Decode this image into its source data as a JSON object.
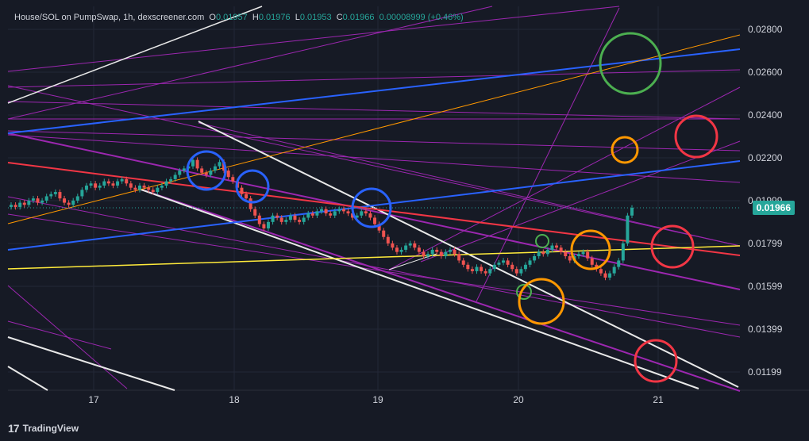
{
  "legend": {
    "title": "House/SOL on PumpSwap, 1h, dexscreener.com",
    "o_label": "O",
    "o_value": "0.01957",
    "h_label": "H",
    "h_value": "0.01976",
    "l_label": "L",
    "l_value": "0.01953",
    "c_label": "C",
    "c_value": "0.01966",
    "change": "0.00008999 (+0.46%)"
  },
  "footer": {
    "brand": "TradingView",
    "logo_glyph": "17"
  },
  "colors": {
    "background": "#161a25",
    "grid": "#232836",
    "up": "#26a69a",
    "down": "#ef5350",
    "white_line": "#e8e8e8",
    "purple_line": "#9c27b0",
    "blue_line": "#2962ff",
    "red_line": "#f23645",
    "yellow_line": "#ffeb3b",
    "orange_line": "#ff9800",
    "green_circle": "#4caf50"
  },
  "chart_data": {
    "type": "candlestick",
    "title": "House/SOL on PumpSwap, 1h, dexscreener.com",
    "y_axis": {
      "ticks": [
        "0.02800",
        "0.02600",
        "0.02400",
        "0.02200",
        "0.01999",
        "0.01799",
        "0.01599",
        "0.01399",
        "0.01199"
      ],
      "range": [
        0.0106,
        0.029
      ]
    },
    "x_axis": {
      "ticks": [
        "17",
        "18",
        "19",
        "20",
        "21"
      ]
    },
    "last_price": "0.01966",
    "ohlc_last": {
      "open": 0.01957,
      "high": 0.01976,
      "low": 0.01953,
      "close": 0.01966
    },
    "closes": [
      0.0198,
      0.0197,
      0.0199,
      0.0198,
      0.02,
      0.0201,
      0.0199,
      0.02,
      0.0202,
      0.0203,
      0.0204,
      0.0201,
      0.0199,
      0.0198,
      0.02,
      0.0202,
      0.0205,
      0.0207,
      0.0208,
      0.0206,
      0.0207,
      0.0209,
      0.0208,
      0.0207,
      0.0209,
      0.021,
      0.0208,
      0.0206,
      0.0205,
      0.0207,
      0.0206,
      0.0205,
      0.0204,
      0.0206,
      0.0207,
      0.0209,
      0.021,
      0.0212,
      0.0214,
      0.0215,
      0.0216,
      0.0219,
      0.0215,
      0.0213,
      0.0212,
      0.0214,
      0.0216,
      0.0218,
      0.0214,
      0.0211,
      0.0209,
      0.0206,
      0.0203,
      0.0201,
      0.0196,
      0.0193,
      0.0189,
      0.0187,
      0.019,
      0.0193,
      0.0192,
      0.019,
      0.0191,
      0.0193,
      0.0191,
      0.019,
      0.0192,
      0.0194,
      0.0193,
      0.0195,
      0.0196,
      0.0194,
      0.0193,
      0.0195,
      0.0196,
      0.0195,
      0.0194,
      0.0192,
      0.0193,
      0.0195,
      0.0194,
      0.0192,
      0.0189,
      0.0186,
      0.0183,
      0.018,
      0.0178,
      0.0176,
      0.0177,
      0.0179,
      0.018,
      0.0178,
      0.0176,
      0.0174,
      0.0175,
      0.0177,
      0.0176,
      0.0174,
      0.0176,
      0.0177,
      0.0175,
      0.0172,
      0.017,
      0.0168,
      0.0167,
      0.0169,
      0.0167,
      0.0166,
      0.0168,
      0.017,
      0.0171,
      0.0172,
      0.017,
      0.0168,
      0.0166,
      0.0168,
      0.017,
      0.0172,
      0.0174,
      0.0176,
      0.0175,
      0.0177,
      0.0179,
      0.0178,
      0.0176,
      0.0174,
      0.0172,
      0.0174,
      0.0175,
      0.0176,
      0.0173,
      0.017,
      0.0168,
      0.0166,
      0.0164,
      0.0166,
      0.0169,
      0.0172,
      0.018,
      0.0193,
      0.01966
    ]
  }
}
